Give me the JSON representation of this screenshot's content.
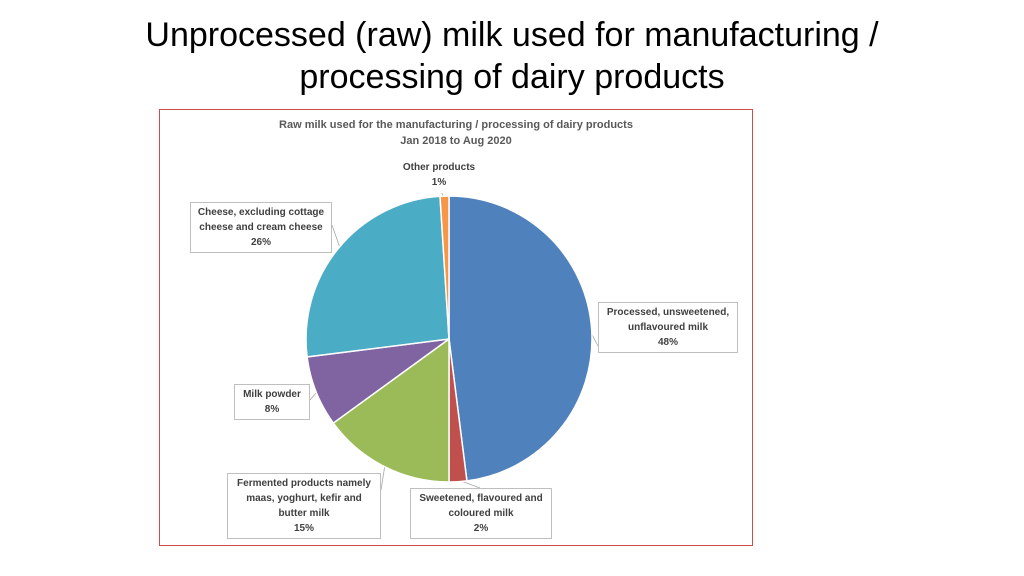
{
  "slide": {
    "title_line1": "Unprocessed (raw) milk used for manufacturing /",
    "title_line2": "processing of dairy products"
  },
  "chart_data": {
    "type": "pie",
    "title": "Raw milk used for the manufacturing / processing of dairy products",
    "subtitle": "Jan 2018 to Aug 2020",
    "slices": [
      {
        "label": "Processed, unsweetened, unflavoured milk",
        "label_lines": [
          "Processed, unsweetened,",
          "unflavoured milk"
        ],
        "value": 48,
        "value_label": "48%",
        "color": "#4f81bd"
      },
      {
        "label": "Sweetened, flavoured and coloured milk",
        "label_lines": [
          "Sweetened, flavoured and",
          "coloured milk"
        ],
        "value": 2,
        "value_label": "2%",
        "color": "#c0504d"
      },
      {
        "label": "Fermented products namely maas, yoghurt, kefir and butter milk",
        "label_lines": [
          "Fermented products namely",
          "maas, yoghurt, kefir and",
          "butter milk"
        ],
        "value": 15,
        "value_label": "15%",
        "color": "#9bbb59"
      },
      {
        "label": "Milk powder",
        "label_lines": [
          "Milk powder"
        ],
        "value": 8,
        "value_label": "8%",
        "color": "#8064a2"
      },
      {
        "label": "Cheese, excluding cottage cheese and cream cheese",
        "label_lines": [
          "Cheese, excluding cottage",
          "cheese and cream cheese"
        ],
        "value": 26,
        "value_label": "26%",
        "color": "#4bacc6"
      },
      {
        "label": "Other products",
        "label_lines": [
          "Other products"
        ],
        "value": 1,
        "value_label": "1%",
        "color": "#f79646"
      }
    ],
    "start_angle_deg": 0,
    "direction": "clockwise",
    "legend": "none (callout labels)"
  }
}
